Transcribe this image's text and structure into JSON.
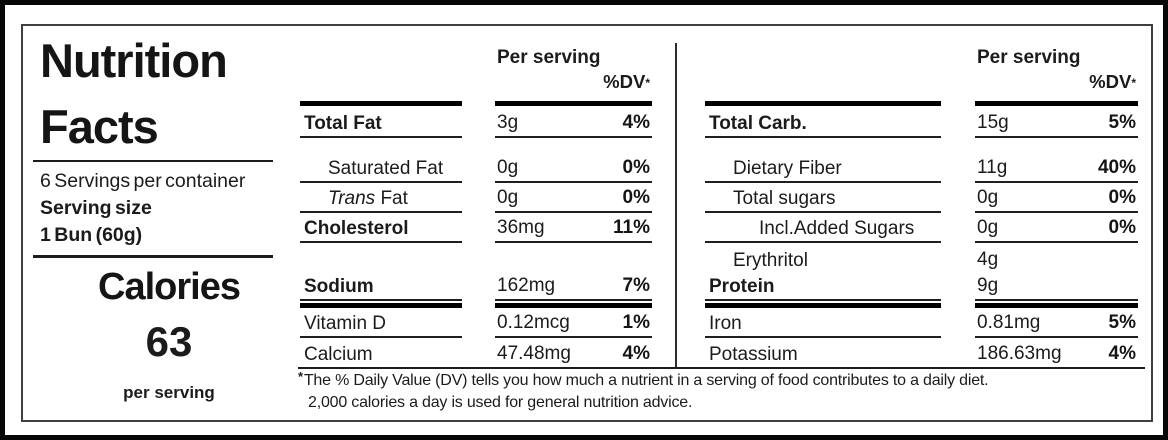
{
  "title": {
    "line1": "Nutrition",
    "line2": "Facts"
  },
  "serving_info": {
    "servings_per_container": "6 Servings per container",
    "serving_size_label": "Serving size",
    "serving_size_value": "1 Bun (60g)"
  },
  "calories": {
    "label": "Calories",
    "value": "63",
    "unit": "per serving"
  },
  "fat_table": {
    "header": {
      "per_serving": "Per serving",
      "dv": "%DV",
      "dv_mark": "*"
    },
    "rows": [
      {
        "label": "Total Fat",
        "value": "3g",
        "dv": "4%"
      },
      {
        "label": "Saturated Fat",
        "value": "0g",
        "dv": "0%"
      },
      {
        "label_italic": "Trans",
        "label_rest": " Fat",
        "value": "0g",
        "dv": "0%"
      },
      {
        "label": "Cholesterol",
        "value": "36mg",
        "dv": "11%"
      },
      {
        "label": "Sodium",
        "value": "162mg",
        "dv": "7%"
      },
      {
        "label": "Vitamin D",
        "value": "0.12mcg",
        "dv": "1%"
      },
      {
        "label": "Calcium",
        "value": "47.48mg",
        "dv": "4%"
      }
    ]
  },
  "carb_table": {
    "header": {
      "per_serving": "Per serving",
      "dv": "%DV",
      "dv_mark": "*"
    },
    "rows": [
      {
        "label": "Total Carb.",
        "value": "15g",
        "dv": "5%"
      },
      {
        "label": "Dietary Fiber",
        "value": "11g",
        "dv": "40%"
      },
      {
        "label": "Total sugars",
        "value": "0g",
        "dv": "0%"
      },
      {
        "label": "Incl.Added Sugars",
        "value": "0g",
        "dv": "0%"
      },
      {
        "label": "Erythritol",
        "value": "4g",
        "dv": ""
      },
      {
        "label": "Protein",
        "value": "9g",
        "dv": ""
      },
      {
        "label": "Iron",
        "value": "0.81mg",
        "dv": "5%"
      },
      {
        "label": "Potassium",
        "value": "186.63mg",
        "dv": "4%"
      }
    ]
  },
  "footnote": {
    "mark": "*",
    "line1": "The % Daily Value (DV) tells you how much a nutrient in a serving of food contributes to a daily diet.",
    "line2": "2,000 calories a day is used for general nutrition advice."
  },
  "colors": {
    "ink": "#1b1b1b",
    "thick_bar": "#000000",
    "thin_rule": "#1f1f1f",
    "inner_border": "#3f3f3f",
    "outer_frame": "#070707",
    "background": "#ffffff"
  }
}
